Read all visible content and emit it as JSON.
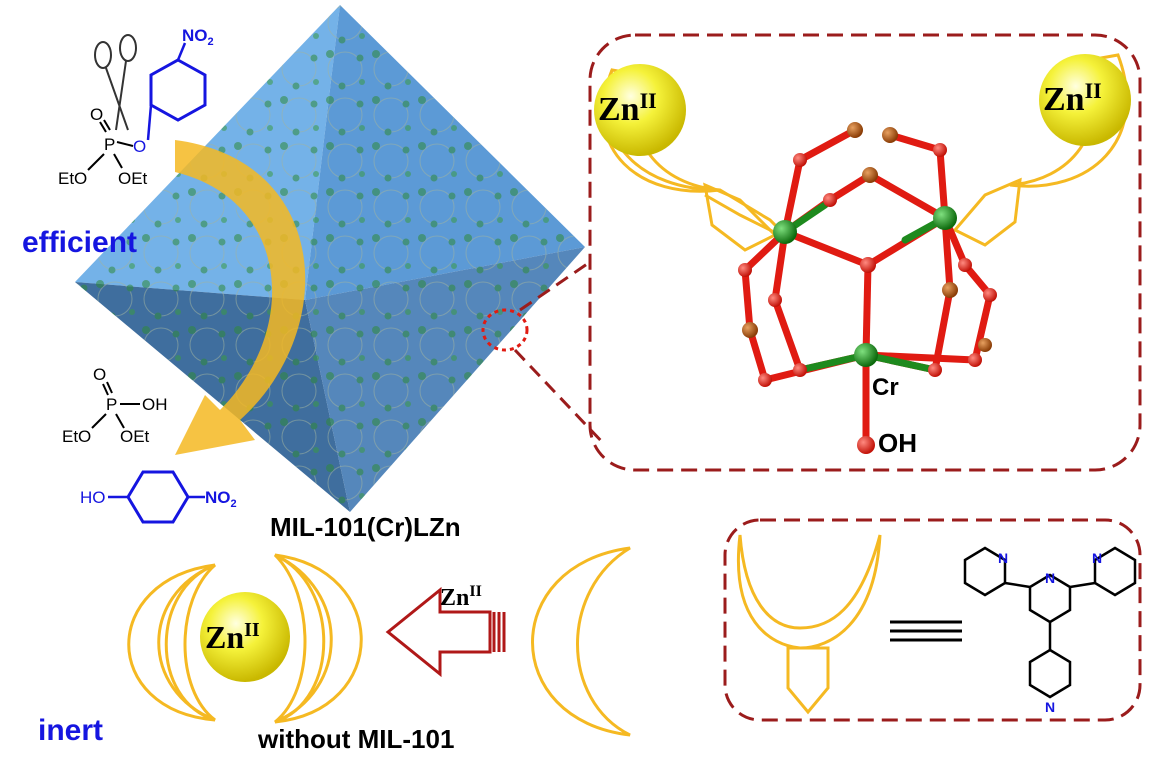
{
  "colors": {
    "octahedron_light": "#6aa7de",
    "octahedron_dark": "#4d7fb0",
    "dashed_border": "#9b1c1c",
    "ligand": "#f5b922",
    "zinc": "#f2ee3a",
    "chromium": "#1e8a1e",
    "oxygen": "#e01b12",
    "carbon": "#b5520c",
    "label_blue": "#1515e0",
    "arrow_red": "#b01818"
  },
  "substrate": {
    "no2": "NO",
    "no2_sub": "2",
    "o_double": "O",
    "p": "P",
    "o_ester": "O",
    "eto": "EtO",
    "oet": "OEt",
    "icon": "scissors-icon"
  },
  "labels": {
    "efficient": "efficient",
    "inert": "inert",
    "mof_name": "MIL-101(Cr)LZn",
    "without": "without MIL-101"
  },
  "products": {
    "o_double": "O",
    "p": "P",
    "oh": "OH",
    "eto": "EtO",
    "oet": "OEt",
    "ho": "HO",
    "no2": "NO",
    "no2_sub": "2"
  },
  "zinc": {
    "symbol": "Zn",
    "oxidation": "II"
  },
  "cluster": {
    "metal_label": "Cr",
    "hydroxide_label": "OH"
  },
  "legend": {
    "nitrogen": "N"
  }
}
